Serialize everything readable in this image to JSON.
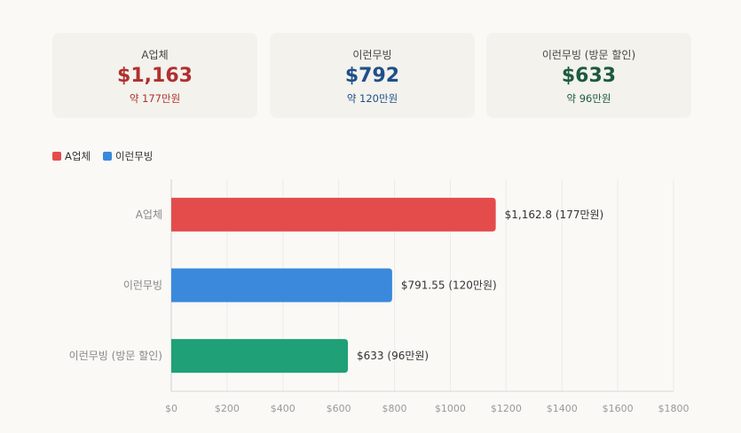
{
  "cards": [
    {
      "title": "A업체",
      "value": "$1,163",
      "sub": "약 177만원",
      "color": "#b0302f"
    },
    {
      "title": "이런무빙",
      "value": "$792",
      "sub": "약 120만원",
      "color": "#1f4f8a"
    },
    {
      "title": "이런무빙 (방문 할인)",
      "value": "$633",
      "sub": "약 96만원",
      "color": "#1d5a40"
    }
  ],
  "legend": [
    {
      "label": "A업체",
      "color": "#e44c4c"
    },
    {
      "label": "이런무빙",
      "color": "#3a89dc"
    }
  ],
  "chart_data": {
    "type": "bar",
    "orientation": "horizontal",
    "categories": [
      "A업체",
      "이런무빙",
      "이런무빙 (방문 할인)"
    ],
    "values": [
      1162.8,
      791.55,
      633
    ],
    "data_labels": [
      "$1,162.8 (177만원)",
      "$791.55 (120만원)",
      "$633 (96만원)"
    ],
    "colors": [
      "#e44c4c",
      "#3a89dc",
      "#1fa077"
    ],
    "xlim": [
      0,
      1800
    ],
    "x_ticks": [
      0,
      200,
      400,
      600,
      800,
      1000,
      1200,
      1400,
      1600,
      1800
    ],
    "x_tick_labels": [
      "$0",
      "$200",
      "$400",
      "$600",
      "$800",
      "$1000",
      "$1200",
      "$1400",
      "$1600",
      "$1800"
    ],
    "grid": true
  }
}
